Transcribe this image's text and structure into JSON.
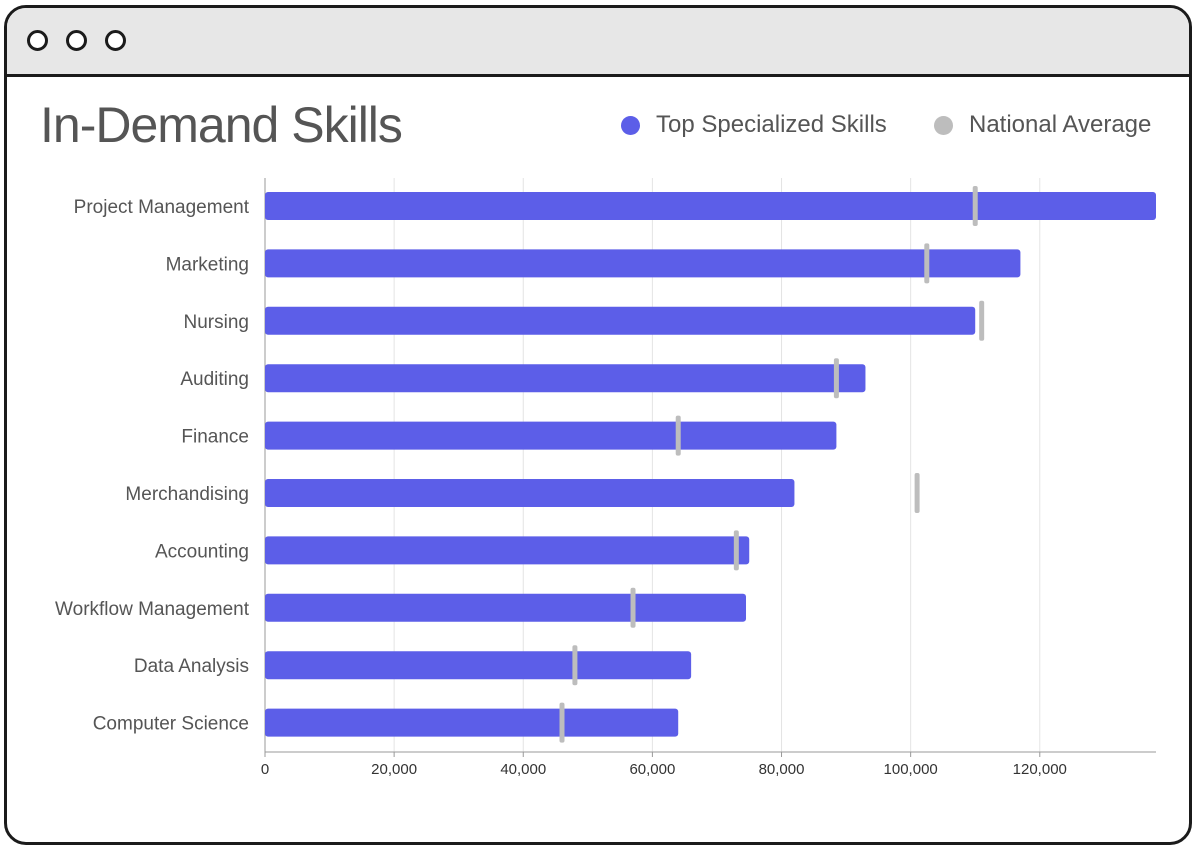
{
  "window": {
    "controls": [
      "window-dot-1",
      "window-dot-2",
      "window-dot-3"
    ]
  },
  "colors": {
    "bar": "#5c5ee8",
    "average": "#bdbdbd",
    "grid": "#e4e4e4",
    "axis": "#999999"
  },
  "legend": {
    "series_1": "Top Specialized Skills",
    "series_2": "National Average"
  },
  "chart_data": {
    "type": "bar",
    "orientation": "horizontal",
    "title": "In-Demand Skills",
    "categories": [
      "Project Management",
      "Marketing",
      "Nursing",
      "Auditing",
      "Finance",
      "Merchandising",
      "Accounting",
      "Workflow Management",
      "Data Analysis",
      "Computer Science"
    ],
    "series": [
      {
        "name": "Top Specialized Skills",
        "values": [
          138000,
          117000,
          110000,
          93000,
          88500,
          82000,
          75000,
          74500,
          66000,
          64000
        ]
      },
      {
        "name": "National Average",
        "values": [
          110000,
          102500,
          111000,
          88500,
          64000,
          101000,
          73000,
          57000,
          48000,
          46000
        ]
      }
    ],
    "xlim": [
      0,
      138000
    ],
    "xticks": [
      0,
      20000,
      40000,
      60000,
      80000,
      100000,
      120000
    ],
    "xtick_labels": [
      "0",
      "20,000",
      "40,000",
      "60,000",
      "80,000",
      "100,000",
      "120,000"
    ],
    "grid": true,
    "xlabel": "",
    "ylabel": "",
    "legend_position": "top-right"
  }
}
